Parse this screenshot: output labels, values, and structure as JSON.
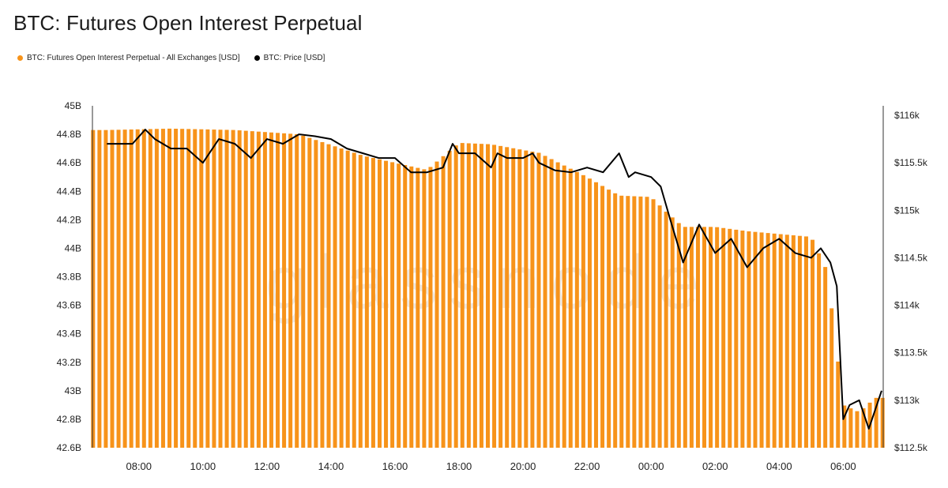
{
  "title": "BTC: Futures Open Interest Perpetual",
  "watermark": "glassnode",
  "legend": [
    {
      "label": "BTC: Futures Open Interest Perpetual - All Exchanges [USD]",
      "color": "#f7931a"
    },
    {
      "label": "BTC: Price [USD]",
      "color": "#000000"
    }
  ],
  "colors": {
    "bars": "#f7931a",
    "price_line": "#000000",
    "watermark": "#efe9e2"
  },
  "chart_data": {
    "type": "bar",
    "title": "BTC: Futures Open Interest Perpetual",
    "x_ticks": [
      "08:00",
      "10:00",
      "12:00",
      "14:00",
      "16:00",
      "18:00",
      "20:00",
      "22:00",
      "00:00",
      "02:00",
      "04:00",
      "06:00"
    ],
    "y_left_ticks": [
      "45B",
      "44.8B",
      "44.6B",
      "44.4B",
      "44.2B",
      "44B",
      "43.8B",
      "43.6B",
      "43.4B",
      "43.2B",
      "43B",
      "42.8B",
      "42.6B"
    ],
    "y_left_range": [
      42.6,
      45.0
    ],
    "y_right_ticks": [
      "$116k",
      "$115.5k",
      "$115k",
      "$114.5k",
      "$114k",
      "$113.5k",
      "$113k",
      "$112.5k"
    ],
    "y_right_range": [
      112.5,
      116.1
    ],
    "series": [
      {
        "name": "BTC: Futures Open Interest Perpetual - All Exchanges [USD]",
        "kind": "bar",
        "axis": "left",
        "x_hours": [
          7.0,
          9.0,
          11.0,
          13.0,
          15.0,
          17.0,
          18.0,
          19.0,
          20.5,
          22.0,
          23.0,
          24.0,
          24.5,
          25.0,
          26.0,
          27.0,
          28.0,
          29.0,
          29.5,
          30.0,
          30.5,
          31.0
        ],
        "values": [
          44.83,
          44.84,
          44.83,
          44.8,
          44.65,
          44.55,
          44.74,
          44.73,
          44.67,
          44.5,
          44.37,
          44.36,
          44.25,
          44.15,
          44.15,
          44.12,
          44.1,
          44.08,
          43.84,
          42.9,
          42.85,
          42.95
        ]
      },
      {
        "name": "BTC: Price [USD]",
        "kind": "line",
        "axis": "right",
        "x_hours": [
          7.0,
          7.8,
          8.2,
          8.5,
          9.0,
          9.5,
          10.0,
          10.5,
          11.0,
          11.5,
          12.0,
          12.5,
          13.0,
          13.5,
          14.0,
          14.5,
          15.0,
          15.5,
          16.0,
          16.5,
          17.0,
          17.5,
          17.8,
          18.0,
          18.5,
          19.0,
          19.2,
          19.5,
          20.0,
          20.3,
          20.5,
          21.0,
          21.5,
          22.0,
          22.5,
          23.0,
          23.3,
          23.5,
          24.0,
          24.3,
          24.6,
          25.0,
          25.5,
          26.0,
          26.5,
          27.0,
          27.5,
          28.0,
          28.5,
          29.0,
          29.3,
          29.6,
          29.8,
          30.0,
          30.2,
          30.5,
          30.8,
          31.0,
          31.2
        ],
        "values": [
          115.7,
          115.7,
          115.85,
          115.75,
          115.65,
          115.65,
          115.5,
          115.75,
          115.7,
          115.55,
          115.75,
          115.7,
          115.8,
          115.78,
          115.75,
          115.65,
          115.6,
          115.55,
          115.55,
          115.4,
          115.4,
          115.45,
          115.7,
          115.6,
          115.6,
          115.45,
          115.6,
          115.55,
          115.55,
          115.6,
          115.5,
          115.42,
          115.4,
          115.45,
          115.4,
          115.6,
          115.35,
          115.4,
          115.35,
          115.25,
          114.9,
          114.45,
          114.85,
          114.55,
          114.7,
          114.4,
          114.6,
          114.7,
          114.55,
          114.5,
          114.6,
          114.45,
          114.2,
          112.8,
          112.95,
          113.0,
          112.7,
          112.9,
          113.1
        ]
      }
    ],
    "grid": false,
    "legend_position": "top-left"
  }
}
